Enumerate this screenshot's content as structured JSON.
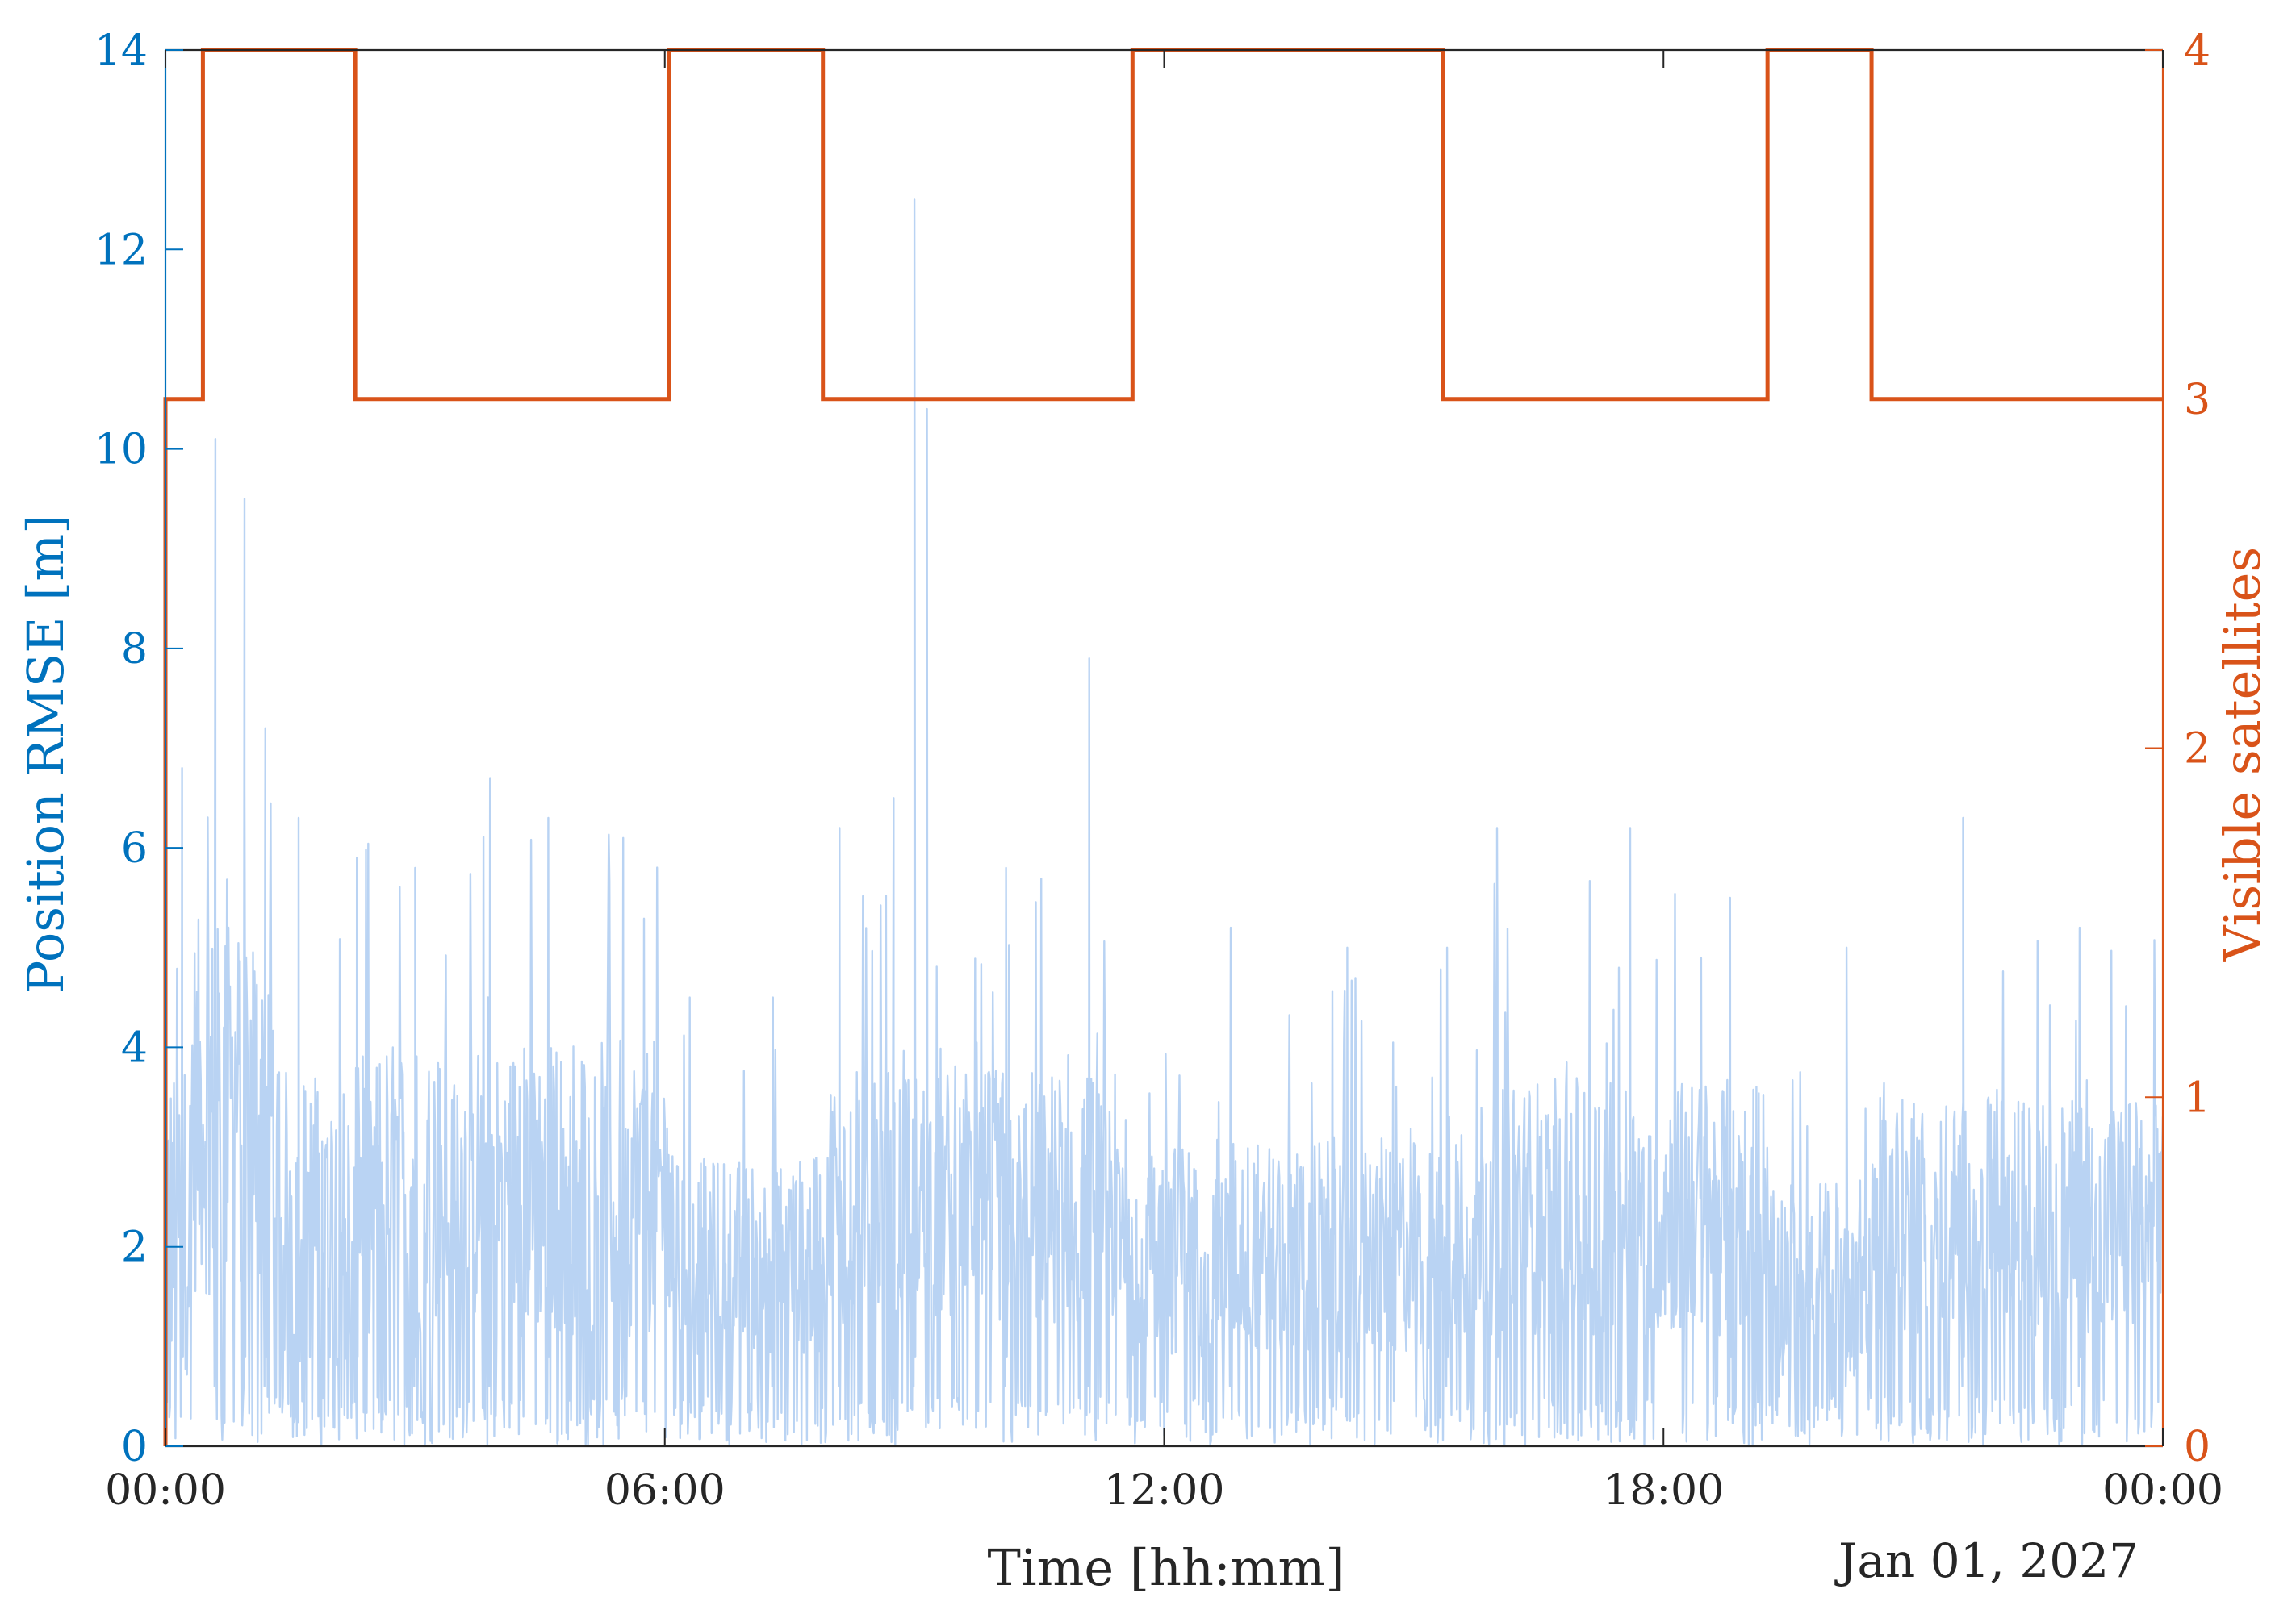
{
  "chart_data": {
    "type": "line",
    "title": "",
    "xlabel": "Time [hh:mm]",
    "date_label": "Jan 01, 2027",
    "x_range": [
      "00:00",
      "24:00"
    ],
    "x_ticks": [
      "00:00",
      "06:00",
      "12:00",
      "18:00",
      "00:00"
    ],
    "ylabel_left": "Position RMSE [m]",
    "ylim_left": [
      0,
      14
    ],
    "yticks_left": [
      "0",
      "2",
      "4",
      "6",
      "8",
      "10",
      "12",
      "14"
    ],
    "ylabel_right": "Visible satellites",
    "ylim_right": [
      0,
      4
    ],
    "yticks_right": [
      "0",
      "1",
      "2",
      "3",
      "4"
    ],
    "grid": false,
    "colors": {
      "left_axis": "#0072BD",
      "right_axis": "#D95319",
      "rmse_fill": "#B9D3F3",
      "axes": "#262626"
    },
    "series": [
      {
        "name": "",
        "axis": "right",
        "style": "step",
        "hours": [
          0.0,
          0.45,
          2.28,
          6.05,
          7.9,
          11.62,
          15.35,
          19.25,
          20.5,
          24.0
        ],
        "satellites": [
          3,
          4,
          3,
          4,
          3,
          4,
          3,
          4,
          3,
          3
        ]
      },
      {
        "name": "",
        "axis": "left",
        "style": "dense-line",
        "sampling": "noisy RMSE trace",
        "peaks": [
          {
            "hour": 0.2,
            "rmse": 6.8
          },
          {
            "hour": 0.6,
            "rmse": 10.1
          },
          {
            "hour": 0.95,
            "rmse": 9.5
          },
          {
            "hour": 1.2,
            "rmse": 7.2
          },
          {
            "hour": 1.6,
            "rmse": 6.3
          },
          {
            "hour": 2.3,
            "rmse": 5.9
          },
          {
            "hour": 3.0,
            "rmse": 5.8
          },
          {
            "hour": 3.9,
            "rmse": 6.7
          },
          {
            "hour": 4.6,
            "rmse": 6.3
          },
          {
            "hour": 5.5,
            "rmse": 6.1
          },
          {
            "hour": 6.3,
            "rmse": 4.5
          },
          {
            "hour": 7.3,
            "rmse": 4.5
          },
          {
            "hour": 8.1,
            "rmse": 6.2
          },
          {
            "hour": 8.75,
            "rmse": 6.5
          },
          {
            "hour": 9.0,
            "rmse": 12.5
          },
          {
            "hour": 9.15,
            "rmse": 10.4
          },
          {
            "hour": 10.1,
            "rmse": 5.8
          },
          {
            "hour": 11.1,
            "rmse": 7.9
          },
          {
            "hour": 12.8,
            "rmse": 5.2
          },
          {
            "hour": 14.2,
            "rmse": 5.0
          },
          {
            "hour": 15.4,
            "rmse": 5.0
          },
          {
            "hour": 16.0,
            "rmse": 6.2
          },
          {
            "hour": 17.6,
            "rmse": 6.2
          },
          {
            "hour": 18.8,
            "rmse": 5.5
          },
          {
            "hour": 20.2,
            "rmse": 5.0
          },
          {
            "hour": 21.6,
            "rmse": 6.3
          },
          {
            "hour": 23.0,
            "rmse": 5.2
          }
        ],
        "segments": [
          {
            "from": 0.0,
            "to": 0.3,
            "mean": 2.3,
            "spread": 1.6,
            "max": 5.8
          },
          {
            "from": 0.3,
            "to": 1.3,
            "mean": 3.4,
            "spread": 1.9,
            "max": 7.0
          },
          {
            "from": 1.3,
            "to": 2.3,
            "mean": 2.3,
            "spread": 1.5,
            "max": 6.0
          },
          {
            "from": 2.3,
            "to": 6.05,
            "mean": 2.6,
            "spread": 1.5,
            "max": 6.2
          },
          {
            "from": 6.05,
            "to": 7.9,
            "mean": 1.9,
            "spread": 1.0,
            "max": 4.3
          },
          {
            "from": 7.9,
            "to": 11.62,
            "mean": 2.5,
            "spread": 1.3,
            "max": 6.0
          },
          {
            "from": 11.62,
            "to": 15.35,
            "mean": 2.0,
            "spread": 1.1,
            "max": 4.9
          },
          {
            "from": 15.35,
            "to": 19.25,
            "mean": 2.4,
            "spread": 1.3,
            "max": 5.8
          },
          {
            "from": 19.25,
            "to": 20.5,
            "mean": 1.7,
            "spread": 1.0,
            "max": 3.8
          },
          {
            "from": 20.5,
            "to": 24.0,
            "mean": 2.3,
            "spread": 1.2,
            "max": 5.1
          }
        ]
      }
    ]
  }
}
